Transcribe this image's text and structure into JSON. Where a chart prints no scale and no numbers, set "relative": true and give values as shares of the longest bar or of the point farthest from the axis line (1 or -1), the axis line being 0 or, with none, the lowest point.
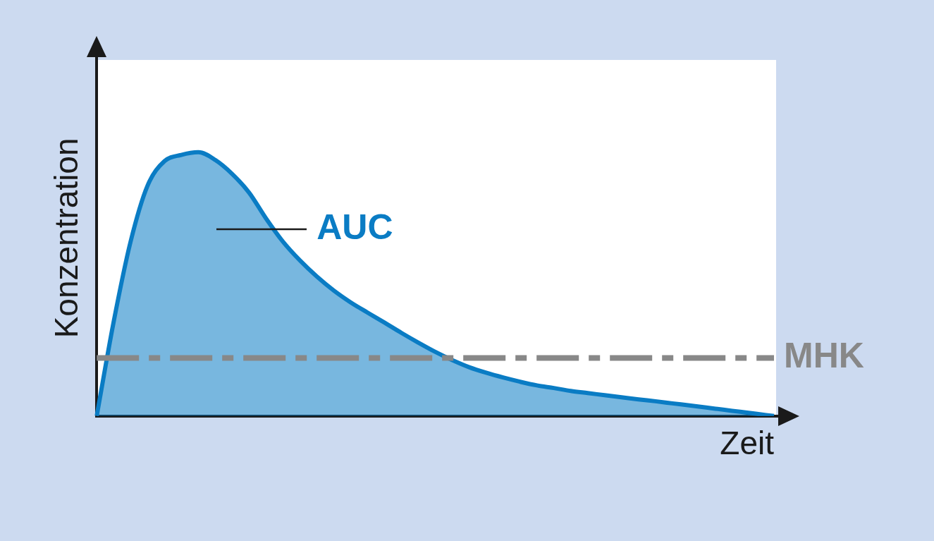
{
  "chart_data": {
    "type": "area",
    "relative": true,
    "xlabel": "Zeit",
    "ylabel": "Konzentration",
    "legend": false,
    "grid": false,
    "categories": [
      null,
      null,
      null,
      null,
      null,
      null,
      null,
      null,
      null,
      null,
      null,
      null,
      null,
      null,
      null,
      null,
      null,
      null,
      null,
      null,
      null,
      null,
      null,
      null,
      null,
      null,
      null,
      null,
      null,
      null,
      null,
      null,
      null,
      null,
      null,
      null,
      null,
      null,
      null,
      null,
      null
    ],
    "series": [
      {
        "color": "#0a7cc4",
        "values": [
          0,
          0.357,
          0.661,
          0.873,
          0.966,
          0.99,
          1,
          0.971,
          0.918,
          0.847,
          0.749,
          0.661,
          0.59,
          0.529,
          0.476,
          0.431,
          0.392,
          0.354,
          0.315,
          0.278,
          0.243,
          0.212,
          0.185,
          0.164,
          0.146,
          0.13,
          0.116,
          0.106,
          0.095,
          0.087,
          0.079,
          0.071,
          0.063,
          0.056,
          0.048,
          0.04,
          0.032,
          0.024,
          0.016,
          0.008,
          0
        ]
      }
    ],
    "ref_lines": [
      {
        "axis": "y",
        "value": 0.22,
        "label": "MHK",
        "color": "#888888",
        "line_style": "dashed"
      }
    ],
    "annotations": [
      "AUC"
    ]
  }
}
